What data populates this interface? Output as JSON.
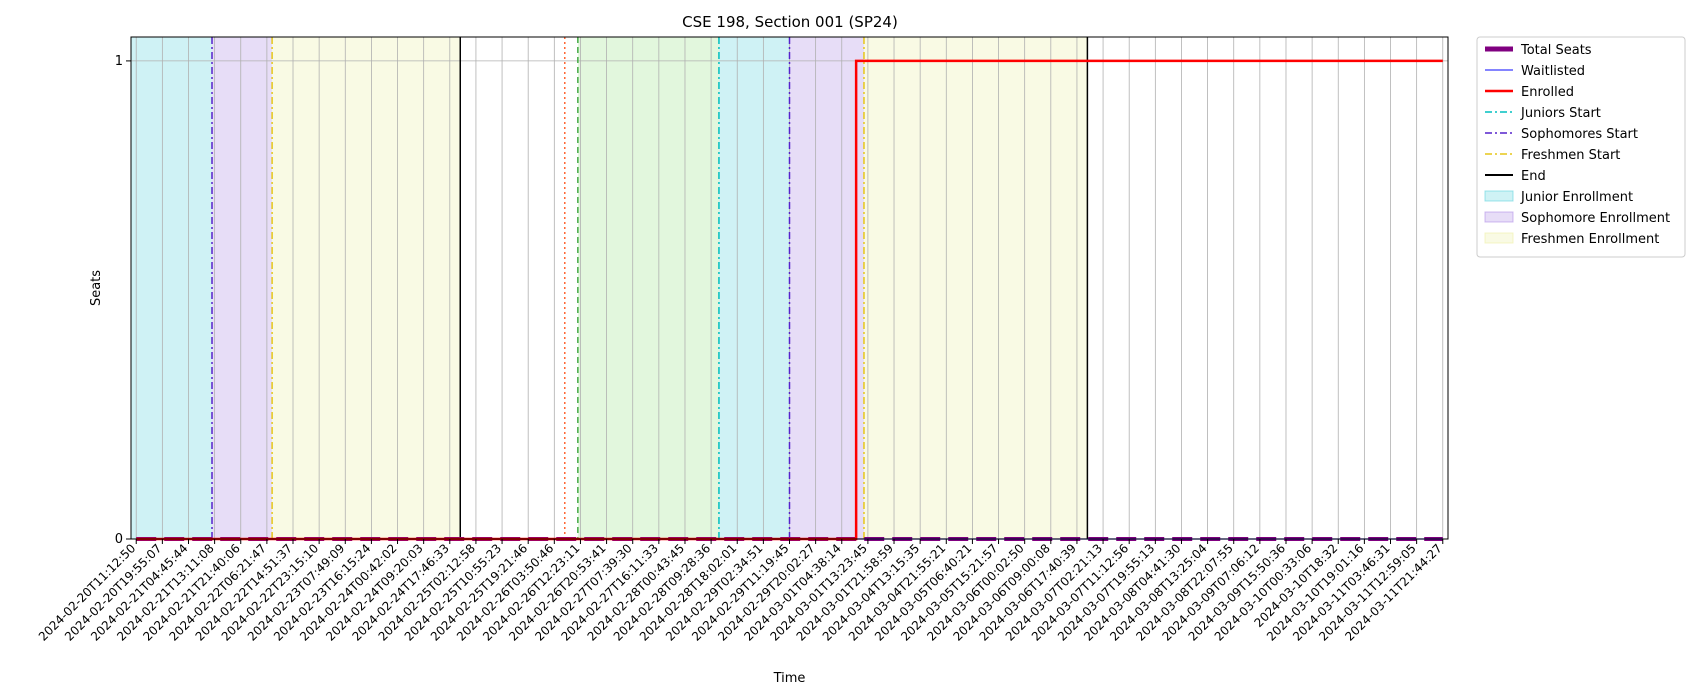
{
  "chart_data": {
    "type": "line",
    "title": "CSE 198, Section 001 (SP24)",
    "xlabel": "Time",
    "ylabel": "Seats",
    "ylim": [
      0,
      1.05
    ],
    "yticks": [
      "0",
      "1"
    ],
    "x_ticks": [
      "2024-02-20T11:12:50",
      "2024-02-20T19:55:07",
      "2024-02-21T04:45:44",
      "2024-02-21T13:11:08",
      "2024-02-21T21:40:06",
      "2024-02-22T06:21:47",
      "2024-02-22T14:51:37",
      "2024-02-22T23:15:10",
      "2024-02-23T07:49:09",
      "2024-02-23T16:15:24",
      "2024-02-24T00:42:02",
      "2024-02-24T09:20:03",
      "2024-02-24T17:46:33",
      "2024-02-25T02:12:58",
      "2024-02-25T10:55:23",
      "2024-02-25T19:21:46",
      "2024-02-26T03:50:46",
      "2024-02-26T12:23:11",
      "2024-02-26T20:53:41",
      "2024-02-27T07:39:30",
      "2024-02-27T16:11:33",
      "2024-02-28T00:43:45",
      "2024-02-28T09:28:36",
      "2024-02-28T18:02:01",
      "2024-02-29T02:34:51",
      "2024-02-29T11:19:45",
      "2024-02-29T20:02:27",
      "2024-03-01T04:38:14",
      "2024-03-01T13:23:45",
      "2024-03-01T21:58:59",
      "2024-03-04T13:15:35",
      "2024-03-04T21:55:21",
      "2024-03-05T06:40:21",
      "2024-03-05T15:21:57",
      "2024-03-06T00:02:50",
      "2024-03-06T09:00:08",
      "2024-03-06T17:40:39",
      "2024-03-07T02:21:13",
      "2024-03-07T11:12:56",
      "2024-03-07T19:55:13",
      "2024-03-08T04:41:30",
      "2024-03-08T13:25:04",
      "2024-03-08T22:07:55",
      "2024-03-09T07:06:12",
      "2024-03-09T15:50:36",
      "2024-03-10T00:33:06",
      "2024-03-10T18:32",
      "2024-03-10T19:01:16",
      "2024-03-11T03:46:31",
      "2024-03-11T12:59:05",
      "2024-03-11T21:44:27"
    ],
    "series": [
      {
        "name": "Total Seats",
        "color": "#800080",
        "style": "dashed-thick",
        "x_index": [
          0,
          50
        ],
        "values": [
          0,
          0
        ]
      },
      {
        "name": "Waitlisted",
        "color": "#3b3bff",
        "style": "solid-thin",
        "x_index": [
          0,
          50
        ],
        "values": [
          0,
          0
        ]
      },
      {
        "name": "Enrolled",
        "color": "#ff0000",
        "style": "step",
        "x_index": [
          0,
          27.55,
          27.55,
          50
        ],
        "values": [
          0,
          0,
          1,
          1
        ]
      }
    ],
    "vertical_lines": [
      {
        "series": "Sophomores Start",
        "x_index": 2.9,
        "color": "#5522cc",
        "dash": "dashdot"
      },
      {
        "series": "Freshmen Start",
        "x_index": 5.2,
        "color": "#e6c619",
        "dash": "dashdot"
      },
      {
        "series": "End",
        "x_index": 12.4,
        "color": "#000000",
        "dash": "solid"
      },
      {
        "series": "",
        "x_index": 16.4,
        "color": "#ff6633",
        "dash": "dotted"
      },
      {
        "series": "",
        "x_index": 16.9,
        "color": "#44aa44",
        "dash": "dashed"
      },
      {
        "series": "Juniors Start",
        "x_index": 22.3,
        "color": "#00bfbf",
        "dash": "dashdot"
      },
      {
        "series": "Sophomores Start",
        "x_index": 25.0,
        "color": "#5522cc",
        "dash": "dashdot"
      },
      {
        "series": "Freshmen Start",
        "x_index": 27.85,
        "color": "#e6c619",
        "dash": "dashdot"
      },
      {
        "series": "End",
        "x_index": 36.4,
        "color": "#000000",
        "dash": "solid"
      }
    ],
    "spans": [
      {
        "series": "Junior Enrollment",
        "from": -0.2,
        "to": 2.9,
        "color": "#5fd3de"
      },
      {
        "series": "Sophomore Enrollment",
        "from": 2.9,
        "to": 5.2,
        "color": "#b18ee6"
      },
      {
        "series": "Freshmen Enrollment",
        "from": 5.2,
        "to": 12.4,
        "color": "#ecf0a5"
      },
      {
        "series": "",
        "from": 16.9,
        "to": 22.3,
        "color": "#9ee58e"
      },
      {
        "series": "Junior Enrollment",
        "from": 22.3,
        "to": 25.0,
        "color": "#5fd3de"
      },
      {
        "series": "Sophomore Enrollment",
        "from": 25.0,
        "to": 27.85,
        "color": "#b18ee6"
      },
      {
        "series": "Freshmen Enrollment",
        "from": 27.85,
        "to": 36.4,
        "color": "#ecf0a5"
      }
    ],
    "legend": {
      "position": "outside-top-right",
      "items": [
        {
          "label": "Total Seats",
          "kind": "line",
          "color": "#800080",
          "style": "thick"
        },
        {
          "label": "Waitlisted",
          "kind": "line",
          "color": "#3b3bff",
          "style": "thin"
        },
        {
          "label": "Enrolled",
          "kind": "line",
          "color": "#ff0000",
          "style": "medium"
        },
        {
          "label": "Juniors Start",
          "kind": "line",
          "color": "#00bfbf",
          "style": "dashdot"
        },
        {
          "label": "Sophomores Start",
          "kind": "line",
          "color": "#5522cc",
          "style": "dashdot"
        },
        {
          "label": "Freshmen Start",
          "kind": "line",
          "color": "#e6c619",
          "style": "dashdot"
        },
        {
          "label": "End",
          "kind": "line",
          "color": "#000000",
          "style": "solid"
        },
        {
          "label": "Junior Enrollment",
          "kind": "patch",
          "color": "#5fd3de"
        },
        {
          "label": "Sophomore Enrollment",
          "kind": "patch",
          "color": "#b18ee6"
        },
        {
          "label": "Freshmen Enrollment",
          "kind": "patch",
          "color": "#ecf0a5"
        }
      ]
    },
    "grid": true
  }
}
